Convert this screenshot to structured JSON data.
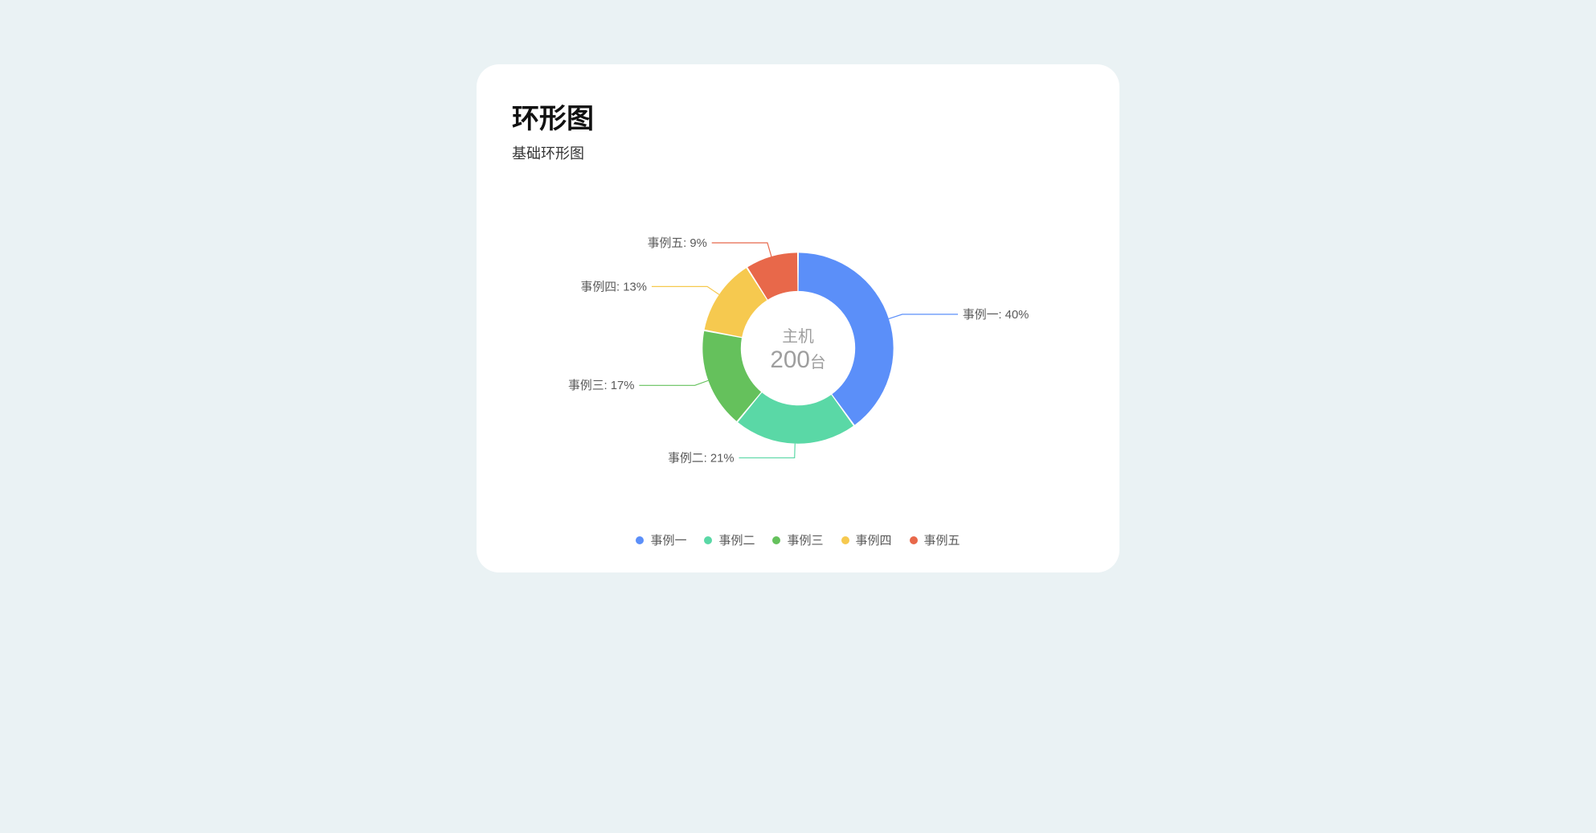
{
  "card": {
    "title": "环形图",
    "subtitle": "基础环形图",
    "background_color": "#ffffff",
    "border_radius": 28
  },
  "page_background": "#eaf2f4",
  "chart": {
    "type": "donut",
    "center_label_top": "主机",
    "center_value": "200",
    "center_unit": "台",
    "center_text_color": "#9e9e9e",
    "label_text_color": "#5a5a5a",
    "label_fontsize": 15,
    "center_top_fontsize": 20,
    "center_value_fontsize": 30,
    "center_unit_fontsize": 20,
    "outer_radius": 120,
    "inner_radius": 72,
    "gap_deg": 1,
    "start_angle_deg": -90,
    "slices": [
      {
        "name": "事例一",
        "percent": 40,
        "color": "#5b8ff9",
        "label": "事例一: 40%"
      },
      {
        "name": "事例二",
        "percent": 21,
        "color": "#5ad8a6",
        "label": "事例二: 21%"
      },
      {
        "name": "事例三",
        "percent": 17,
        "color": "#65c15c",
        "label": "事例三: 17%"
      },
      {
        "name": "事例四",
        "percent": 13,
        "color": "#f6c94f",
        "label": "事例四: 13%"
      },
      {
        "name": "事例五",
        "percent": 9,
        "color": "#e8684a",
        "label": "事例五: 9%"
      }
    ],
    "leader_elbow": 18,
    "leader_horiz": 70
  },
  "legend": {
    "items": [
      {
        "name": "事例一",
        "color": "#5b8ff9"
      },
      {
        "name": "事例二",
        "color": "#5ad8a6"
      },
      {
        "name": "事例三",
        "color": "#65c15c"
      },
      {
        "name": "事例四",
        "color": "#f6c94f"
      },
      {
        "name": "事例五",
        "color": "#e8684a"
      }
    ],
    "dot_radius": 5,
    "fontsize": 15,
    "text_color": "#5a5a5a"
  }
}
